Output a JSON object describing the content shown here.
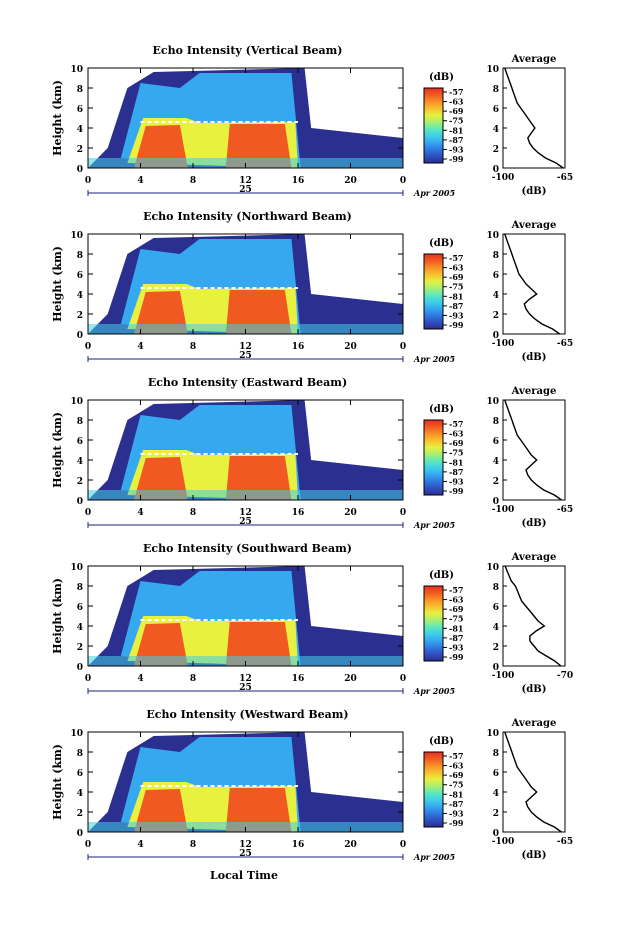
{
  "shared": {
    "height_axis_label": "Height (km)",
    "x_ticks": [
      "0",
      "4",
      "8",
      "12",
      "16",
      "20",
      "0"
    ],
    "day_label": "25",
    "month_year_label": "Apr 2005",
    "colorbar_unit": "(dB)",
    "colorbar_ticks": [
      "-57",
      "-63",
      "-69",
      "-75",
      "-81",
      "-87",
      "-93",
      "-99"
    ],
    "colorbar_colors": [
      "#2b2f8f",
      "#2f4fc0",
      "#2f7ae0",
      "#35a8f0",
      "#3fd0e8",
      "#5fe8b8",
      "#a8f070",
      "#e8f040",
      "#f8c030",
      "#f89028",
      "#f05a22",
      "#e83020"
    ],
    "avg_title": "Average",
    "avg_xlabel": "(dB)",
    "avg_y_ticks": [
      "0",
      "2",
      "4",
      "6",
      "8",
      "10"
    ],
    "bottom_xlabel": "Local Time"
  },
  "chart_data": [
    {
      "type": "heatmap",
      "title": "Echo Intensity (Vertical Beam)",
      "ylabel": "Height (km)",
      "ylim": [
        0,
        10
      ],
      "xlim": [
        0,
        24
      ],
      "colorbar_range": [
        -99,
        -57
      ],
      "average": {
        "xlim": [
          -100,
          -65
        ],
        "xtick_labels": [
          "-100",
          "-65"
        ],
        "x": [
          -66,
          -70,
          -76,
          -80,
          -83,
          -85,
          -86,
          -84,
          -82,
          -84,
          -86,
          -88,
          -90,
          -92,
          -93,
          -94,
          -95,
          -96,
          -97,
          -98,
          -99
        ],
        "y": [
          0,
          0.5,
          1,
          1.5,
          2,
          2.5,
          3,
          3.5,
          4,
          4.5,
          5,
          5.5,
          6,
          6.5,
          7,
          7.5,
          8,
          8.5,
          9,
          9.5,
          10
        ]
      }
    },
    {
      "type": "heatmap",
      "title": "Echo Intensity (Northward Beam)",
      "ylabel": "Height (km)",
      "ylim": [
        0,
        10
      ],
      "xlim": [
        0,
        24
      ],
      "colorbar_range": [
        -99,
        -57
      ],
      "average": {
        "xlim": [
          -100,
          -65
        ],
        "xtick_labels": [
          "-100",
          "-65"
        ],
        "x": [
          -68,
          -72,
          -78,
          -82,
          -85,
          -87,
          -88,
          -85,
          -81,
          -84,
          -87,
          -89,
          -91,
          -92,
          -93,
          -94,
          -95,
          -96,
          -97,
          -98,
          -99
        ],
        "y": [
          0,
          0.5,
          1,
          1.5,
          2,
          2.5,
          3,
          3.5,
          4,
          4.5,
          5,
          5.5,
          6,
          6.5,
          7,
          7.5,
          8,
          8.5,
          9,
          9.5,
          10
        ]
      }
    },
    {
      "type": "heatmap",
      "title": "Echo Intensity (Eastward Beam)",
      "ylabel": "Height (km)",
      "ylim": [
        0,
        10
      ],
      "xlim": [
        0,
        24
      ],
      "colorbar_range": [
        -99,
        -57
      ],
      "average": {
        "xlim": [
          -100,
          -65
        ],
        "xtick_labels": [
          "-100",
          "-65"
        ],
        "x": [
          -67,
          -71,
          -77,
          -81,
          -84,
          -86,
          -87,
          -84,
          -81,
          -84,
          -86,
          -88,
          -90,
          -92,
          -93,
          -94,
          -95,
          -96,
          -97,
          -98,
          -99
        ],
        "y": [
          0,
          0.5,
          1,
          1.5,
          2,
          2.5,
          3,
          3.5,
          4,
          4.5,
          5,
          5.5,
          6,
          6.5,
          7,
          7.5,
          8,
          8.5,
          9,
          9.5,
          10
        ]
      }
    },
    {
      "type": "heatmap",
      "title": "Echo Intensity (Southward Beam)",
      "ylabel": "Height (km)",
      "ylim": [
        0,
        10
      ],
      "xlim": [
        0,
        24
      ],
      "colorbar_range": [
        -99,
        -57
      ],
      "average": {
        "xlim": [
          -100,
          -70
        ],
        "xtick_labels": [
          "-100",
          "-70"
        ],
        "x": [
          -72,
          -75,
          -79,
          -83,
          -85,
          -87,
          -87,
          -84,
          -80,
          -83,
          -85,
          -87,
          -89,
          -91,
          -92,
          -93,
          -94,
          -96,
          -97,
          -98,
          -99
        ],
        "y": [
          0,
          0.5,
          1,
          1.5,
          2,
          2.5,
          3,
          3.5,
          4,
          4.5,
          5,
          5.5,
          6,
          6.5,
          7,
          7.5,
          8,
          8.5,
          9,
          9.5,
          10
        ]
      }
    },
    {
      "type": "heatmap",
      "title": "Echo Intensity (Westward Beam)",
      "ylabel": "Height (km)",
      "ylim": [
        0,
        10
      ],
      "xlim": [
        0,
        24
      ],
      "colorbar_range": [
        -99,
        -57
      ],
      "average": {
        "xlim": [
          -100,
          -65
        ],
        "xtick_labels": [
          "-100",
          "-65"
        ],
        "x": [
          -67,
          -71,
          -77,
          -81,
          -84,
          -86,
          -87,
          -84,
          -81,
          -84,
          -86,
          -88,
          -90,
          -92,
          -93,
          -94,
          -95,
          -96,
          -97,
          -98,
          -99
        ],
        "y": [
          0,
          0.5,
          1,
          1.5,
          2,
          2.5,
          3,
          3.5,
          4,
          4.5,
          5,
          5.5,
          6,
          6.5,
          7,
          7.5,
          8,
          8.5,
          9,
          9.5,
          10
        ]
      }
    }
  ]
}
